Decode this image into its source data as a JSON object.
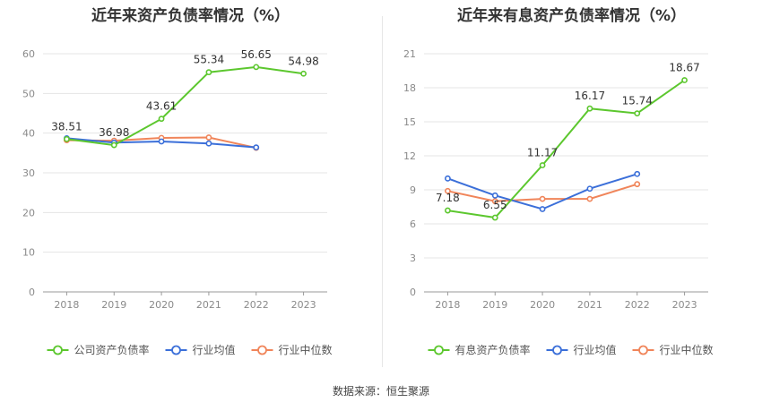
{
  "source_text": "数据来源：恒生聚源",
  "chart_data": [
    {
      "type": "line",
      "title": "近年来资产负债率情况（%）",
      "categories": [
        "2018",
        "2019",
        "2020",
        "2021",
        "2022",
        "2023"
      ],
      "ylim": [
        0,
        60
      ],
      "yticks": [
        0,
        10,
        20,
        30,
        40,
        50,
        60
      ],
      "grid": true,
      "legend_position": "bottom",
      "series": [
        {
          "name": "公司资产负债率",
          "color": "#5cc72e",
          "values": [
            38.51,
            36.98,
            43.61,
            55.34,
            56.65,
            54.98
          ],
          "show_labels": true
        },
        {
          "name": "行业均值",
          "color": "#3b6fd9",
          "values": [
            38.7,
            37.6,
            37.9,
            37.4,
            36.4,
            null
          ],
          "show_labels": false
        },
        {
          "name": "行业中位数",
          "color": "#f0855a",
          "values": [
            38.2,
            38.1,
            38.8,
            38.9,
            36.3,
            null
          ],
          "show_labels": false
        }
      ]
    },
    {
      "type": "line",
      "title": "近年来有息资产负债率情况（%）",
      "categories": [
        "2018",
        "2019",
        "2020",
        "2021",
        "2022",
        "2023"
      ],
      "ylim": [
        0,
        21
      ],
      "yticks": [
        0,
        3,
        6,
        9,
        12,
        15,
        18,
        21
      ],
      "grid": true,
      "legend_position": "bottom",
      "series": [
        {
          "name": "有息资产负债率",
          "color": "#5cc72e",
          "values": [
            7.18,
            6.55,
            11.17,
            16.17,
            15.74,
            18.67
          ],
          "show_labels": true
        },
        {
          "name": "行业均值",
          "color": "#3b6fd9",
          "values": [
            10.0,
            8.5,
            7.3,
            9.1,
            10.4,
            null
          ],
          "show_labels": false
        },
        {
          "name": "行业中位数",
          "color": "#f0855a",
          "values": [
            8.9,
            8.0,
            8.2,
            8.2,
            9.5,
            null
          ],
          "show_labels": false
        }
      ]
    }
  ]
}
